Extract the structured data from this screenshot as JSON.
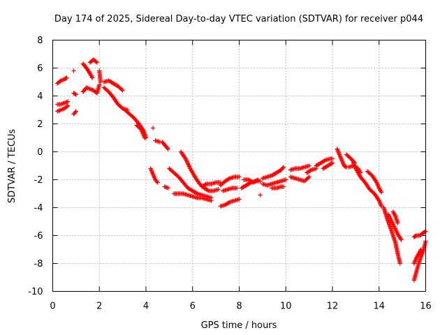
{
  "chart_data": {
    "type": "scatter",
    "title": "Day 174 of 2025, Sidereal Day-to-day VTEC variation (SDTVAR) for receiver p044",
    "xlabel": "GPS time / hours",
    "ylabel": "SDTVAR / TECUs",
    "xlim": [
      0,
      16
    ],
    "ylim": [
      -10,
      8
    ],
    "xticks": [
      "0",
      "2",
      "4",
      "6",
      "8",
      "10",
      "12",
      "14",
      "16"
    ],
    "yticks": [
      "8",
      "6",
      "4",
      "2",
      "0",
      "-2",
      "-4",
      "-6",
      "-8",
      "-10"
    ],
    "grid": true,
    "marker": "+",
    "color": "#ff0000",
    "series": [
      {
        "name": "SDTVAR",
        "segments": [
          [
            [
              0.2,
              4.9
            ],
            [
              0.35,
              5.1
            ],
            [
              0.5,
              5.2
            ],
            [
              0.6,
              5.3
            ]
          ],
          [
            [
              0.2,
              3.4
            ],
            [
              0.35,
              3.4
            ],
            [
              0.5,
              3.5
            ],
            [
              0.65,
              3.6
            ]
          ],
          [
            [
              0.2,
              2.9
            ],
            [
              0.35,
              3.0
            ],
            [
              0.5,
              3.1
            ],
            [
              0.65,
              3.3
            ]
          ],
          [
            [
              0.9,
              5.8
            ]
          ],
          [
            [
              0.9,
              4.2
            ],
            [
              1.0,
              4.1
            ]
          ],
          [
            [
              0.9,
              2.7
            ],
            [
              1.0,
              2.9
            ]
          ],
          [
            [
              1.3,
              6.3
            ],
            [
              1.45,
              6.0
            ],
            [
              1.6,
              5.6
            ],
            [
              1.7,
              5.3
            ]
          ],
          [
            [
              1.3,
              4.3
            ],
            [
              1.45,
              4.6
            ],
            [
              1.6,
              4.5
            ],
            [
              1.75,
              4.4
            ],
            [
              1.9,
              4.2
            ],
            [
              2.0,
              4.8
            ]
          ],
          [
            [
              1.6,
              6.4
            ],
            [
              1.75,
              6.6
            ],
            [
              1.9,
              6.4
            ]
          ],
          [
            [
              2.0,
              5.8
            ],
            [
              2.05,
              5.0
            ]
          ],
          [
            [
              2.2,
              5.0
            ],
            [
              2.4,
              5.1
            ],
            [
              2.6,
              4.9
            ],
            [
              2.8,
              4.7
            ],
            [
              3.0,
              4.4
            ]
          ],
          [
            [
              2.2,
              4.6
            ],
            [
              2.4,
              4.3
            ],
            [
              2.6,
              3.9
            ],
            [
              2.8,
              3.4
            ],
            [
              3.0,
              3.1
            ],
            [
              3.2,
              3.0
            ]
          ],
          [
            [
              3.1,
              3.0
            ],
            [
              3.3,
              2.7
            ],
            [
              3.5,
              2.4
            ],
            [
              3.7,
              2.0
            ],
            [
              3.9,
              1.5
            ],
            [
              4.0,
              1.0
            ]
          ],
          [
            [
              3.6,
              1.9
            ],
            [
              3.8,
              1.6
            ],
            [
              3.95,
              1.0
            ]
          ],
          [
            [
              4.3,
              1.7
            ]
          ],
          [
            [
              4.4,
              0.8
            ],
            [
              4.6,
              0.7
            ]
          ],
          [
            [
              4.7,
              0.7
            ],
            [
              4.85,
              0.4
            ],
            [
              4.95,
              0.2
            ]
          ],
          [
            [
              4.2,
              -1.2
            ],
            [
              4.3,
              -1.6
            ],
            [
              4.4,
              -2.0
            ],
            [
              4.5,
              -2.2
            ]
          ],
          [
            [
              4.8,
              -2.5
            ],
            [
              4.95,
              -2.6
            ]
          ],
          [
            [
              5.5,
              0.0
            ],
            [
              5.7,
              -0.5
            ],
            [
              5.9,
              -1.2
            ],
            [
              6.1,
              -1.8
            ],
            [
              6.3,
              -2.3
            ],
            [
              6.5,
              -2.6
            ],
            [
              6.7,
              -2.8
            ],
            [
              6.9,
              -2.8
            ],
            [
              7.1,
              -2.7
            ]
          ],
          [
            [
              5.0,
              -1.2
            ],
            [
              5.2,
              -1.5
            ],
            [
              5.4,
              -1.8
            ],
            [
              5.6,
              -2.2
            ],
            [
              5.8,
              -2.6
            ],
            [
              6.0,
              -2.8
            ],
            [
              6.2,
              -3.0
            ],
            [
              6.4,
              -3.1
            ],
            [
              6.6,
              -3.2
            ],
            [
              6.8,
              -3.3
            ]
          ],
          [
            [
              5.2,
              -3.0
            ],
            [
              5.4,
              -3.0
            ],
            [
              5.6,
              -3.0
            ],
            [
              5.8,
              -3.1
            ],
            [
              6.0,
              -3.2
            ],
            [
              6.2,
              -3.3
            ],
            [
              6.4,
              -3.3
            ],
            [
              6.6,
              -3.4
            ],
            [
              6.8,
              -3.5
            ]
          ],
          [
            [
              6.4,
              -2.5
            ],
            [
              6.6,
              -2.3
            ],
            [
              6.8,
              -2.3
            ],
            [
              7.0,
              -2.2
            ],
            [
              7.2,
              -2.2
            ]
          ],
          [
            [
              7.2,
              -2.4
            ],
            [
              7.4,
              -2.1
            ],
            [
              7.6,
              -1.9
            ],
            [
              7.8,
              -1.8
            ],
            [
              8.0,
              -1.8
            ]
          ],
          [
            [
              7.3,
              -2.8
            ],
            [
              7.5,
              -2.7
            ],
            [
              7.7,
              -2.6
            ],
            [
              7.9,
              -2.6
            ]
          ],
          [
            [
              7.2,
              -3.9
            ],
            [
              7.4,
              -3.8
            ],
            [
              7.6,
              -3.6
            ],
            [
              7.8,
              -3.5
            ],
            [
              8.0,
              -3.4
            ]
          ],
          [
            [
              8.1,
              -2.6
            ],
            [
              8.3,
              -2.4
            ],
            [
              8.5,
              -2.2
            ],
            [
              8.7,
              -2.1
            ],
            [
              8.9,
              -2.1
            ]
          ],
          [
            [
              8.2,
              -2.0
            ],
            [
              8.4,
              -2.0
            ],
            [
              8.6,
              -2.2
            ],
            [
              8.8,
              -2.0
            ]
          ],
          [
            [
              8.9,
              -3.1
            ]
          ],
          [
            [
              9.0,
              -2.3
            ],
            [
              9.2,
              -2.4
            ],
            [
              9.4,
              -2.3
            ],
            [
              9.6,
              -2.2
            ],
            [
              9.8,
              -2.1
            ],
            [
              10.0,
              -2.0
            ]
          ],
          [
            [
              9.0,
              -1.9
            ],
            [
              9.2,
              -1.8
            ],
            [
              9.4,
              -1.7
            ],
            [
              9.6,
              -1.5
            ],
            [
              9.8,
              -1.3
            ],
            [
              9.9,
              -1.1
            ]
          ],
          [
            [
              9.4,
              -2.6
            ],
            [
              9.6,
              -2.6
            ],
            [
              9.8,
              -2.5
            ],
            [
              9.9,
              -2.5
            ]
          ],
          [
            [
              10.2,
              -1.3
            ],
            [
              10.4,
              -1.2
            ],
            [
              10.6,
              -1.2
            ],
            [
              10.8,
              -1.1
            ],
            [
              11.0,
              -1.0
            ]
          ],
          [
            [
              10.2,
              -1.8
            ],
            [
              10.4,
              -1.9
            ],
            [
              10.6,
              -2.0
            ],
            [
              10.8,
              -2.1
            ],
            [
              11.0,
              -1.8
            ]
          ],
          [
            [
              10.9,
              -1.5
            ],
            [
              11.1,
              -1.3
            ],
            [
              11.3,
              -1.2
            ]
          ],
          [
            [
              11.3,
              -1.0
            ],
            [
              11.5,
              -0.8
            ],
            [
              11.7,
              -0.6
            ],
            [
              11.9,
              -0.5
            ],
            [
              12.0,
              -0.5
            ]
          ],
          [
            [
              11.6,
              -1.2
            ],
            [
              11.8,
              -1.0
            ],
            [
              12.0,
              -0.8
            ]
          ],
          [
            [
              12.2,
              0.2
            ],
            [
              12.3,
              -0.2
            ],
            [
              12.4,
              -0.6
            ],
            [
              12.5,
              -1.0
            ],
            [
              12.6,
              -1.1
            ]
          ],
          [
            [
              12.6,
              -0.2
            ],
            [
              12.8,
              -0.5
            ],
            [
              12.95,
              -0.8
            ]
          ],
          [
            [
              12.7,
              -1.1
            ],
            [
              12.9,
              -1.0
            ],
            [
              13.1,
              -1.2
            ],
            [
              13.2,
              -1.5
            ]
          ],
          [
            [
              12.9,
              -0.8
            ],
            [
              13.0,
              -1.2
            ],
            [
              13.2,
              -1.8
            ],
            [
              13.4,
              -2.2
            ],
            [
              13.6,
              -2.7
            ],
            [
              13.8,
              -3.0
            ],
            [
              14.0,
              -3.5
            ],
            [
              14.1,
              -3.9
            ]
          ],
          [
            [
              13.5,
              -1.4
            ],
            [
              13.7,
              -1.7
            ],
            [
              13.9,
              -2.2
            ],
            [
              14.0,
              -2.6
            ],
            [
              14.1,
              -2.9
            ]
          ],
          [
            [
              14.2,
              -4.0
            ],
            [
              14.35,
              -4.8
            ],
            [
              14.5,
              -5.5
            ],
            [
              14.6,
              -6.0
            ],
            [
              14.7,
              -6.5
            ],
            [
              14.8,
              -7.3
            ],
            [
              14.9,
              -8.0
            ]
          ],
          [
            [
              14.4,
              -4.5
            ],
            [
              14.6,
              -5.2
            ],
            [
              14.8,
              -5.9
            ],
            [
              14.95,
              -6.3
            ]
          ],
          [
            [
              14.6,
              -4.3
            ],
            [
              14.7,
              -4.6
            ],
            [
              14.8,
              -5.1
            ]
          ],
          [
            [
              15.5,
              -9.2
            ],
            [
              15.6,
              -8.6
            ],
            [
              15.7,
              -8.0
            ],
            [
              15.8,
              -7.5
            ],
            [
              15.9,
              -7.1
            ],
            [
              16.0,
              -6.4
            ]
          ],
          [
            [
              15.5,
              -8.0
            ],
            [
              15.6,
              -7.6
            ],
            [
              15.7,
              -7.3
            ],
            [
              15.8,
              -7.0
            ]
          ],
          [
            [
              15.5,
              -6.1
            ],
            [
              15.6,
              -6.0
            ],
            [
              15.75,
              -6.0
            ],
            [
              15.9,
              -5.8
            ],
            [
              16.0,
              -5.7
            ]
          ]
        ]
      }
    ]
  }
}
